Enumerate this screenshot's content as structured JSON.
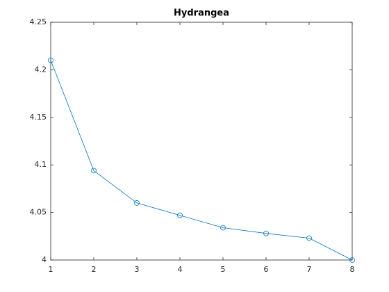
{
  "chart_data": {
    "type": "line",
    "title": "Hydrangea",
    "x": [
      1,
      2,
      3,
      4,
      5,
      6,
      7,
      8
    ],
    "series": [
      {
        "name": "Hydrangea",
        "color": "#0072bd",
        "values": [
          4.21,
          4.094,
          4.06,
          4.047,
          4.034,
          4.028,
          4.023,
          4.0
        ]
      }
    ],
    "xlim": [
      1,
      8
    ],
    "xticks": [
      1,
      2,
      3,
      4,
      5,
      6,
      7,
      8
    ],
    "ylim": [
      4,
      4.25
    ],
    "yticks": [
      4,
      4.05,
      4.1,
      4.15,
      4.2,
      4.25
    ],
    "marker": "circle",
    "grid": false,
    "box": true
  }
}
